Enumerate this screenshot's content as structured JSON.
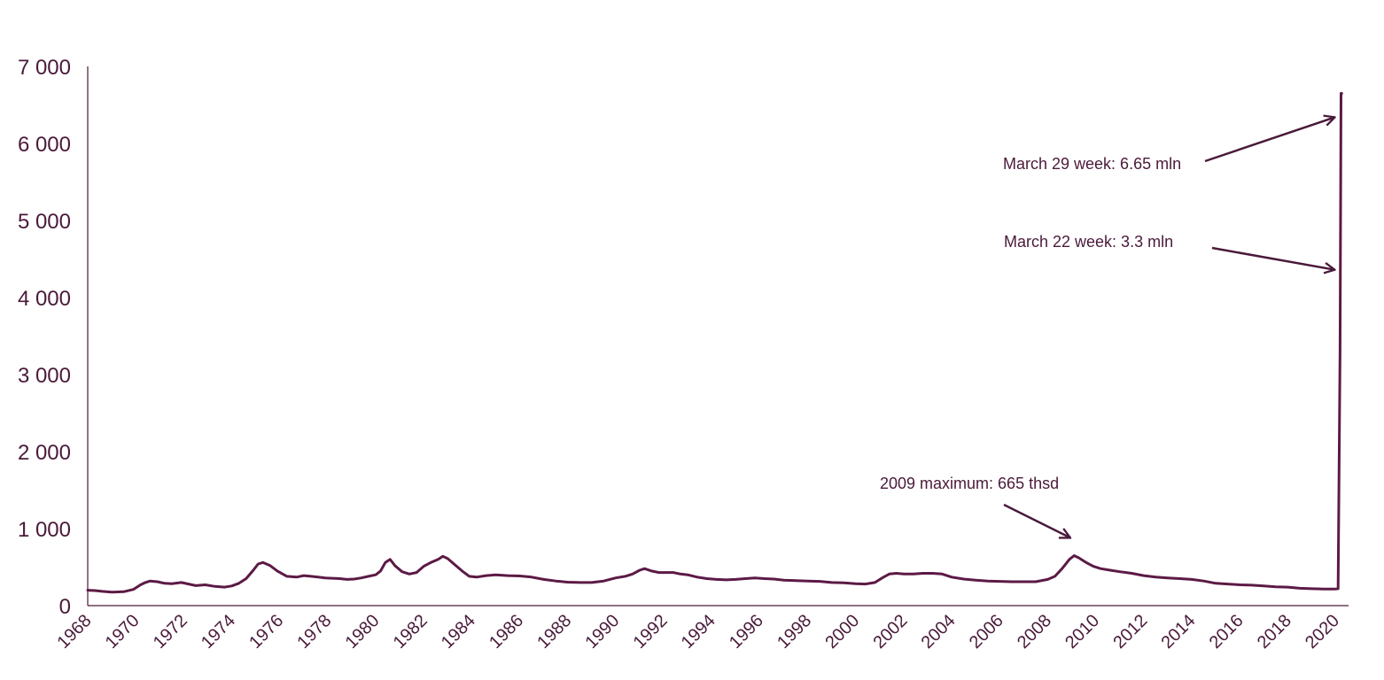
{
  "chart_data": {
    "type": "line",
    "title": "",
    "xlabel": "",
    "ylabel": "",
    "xlim": [
      1968,
      2020.35
    ],
    "ylim": [
      0,
      7000
    ],
    "grid": false,
    "legend": "none",
    "y_ticks": [
      0,
      1000,
      2000,
      3000,
      4000,
      5000,
      6000,
      7000
    ],
    "y_tick_labels": [
      "0",
      "1 000",
      "2 000",
      "3 000",
      "4 000",
      "5 000",
      "6 000",
      "7 000"
    ],
    "x_ticks": [
      1968,
      1970,
      1972,
      1974,
      1976,
      1978,
      1980,
      1982,
      1984,
      1986,
      1988,
      1990,
      1992,
      1994,
      1996,
      1998,
      2000,
      2002,
      2004,
      2006,
      2008,
      2010,
      2012,
      2014,
      2016,
      2018,
      2020
    ],
    "x_tick_labels": [
      "1968",
      "1970",
      "1972",
      "1974",
      "1976",
      "1978",
      "1980",
      "1982",
      "1984",
      "1986",
      "1988",
      "1990",
      "1992",
      "1994",
      "1996",
      "1998",
      "2000",
      "2002",
      "2004",
      "2006",
      "2008",
      "2010",
      "2012",
      "2014",
      "2016",
      "2018",
      "2020"
    ],
    "series": [
      {
        "color": "#5c1a45",
        "x": [
          1968.0,
          1968.3,
          1968.6,
          1969.0,
          1969.5,
          1969.9,
          1970.2,
          1970.4,
          1970.6,
          1970.9,
          1971.2,
          1971.5,
          1971.9,
          1972.2,
          1972.5,
          1972.9,
          1973.3,
          1973.7,
          1974.0,
          1974.3,
          1974.6,
          1974.9,
          1975.1,
          1975.3,
          1975.6,
          1975.9,
          1976.3,
          1976.7,
          1977.0,
          1977.3,
          1977.6,
          1977.9,
          1978.2,
          1978.5,
          1978.8,
          1979.1,
          1979.4,
          1979.7,
          1980.0,
          1980.2,
          1980.4,
          1980.6,
          1980.8,
          1981.1,
          1981.4,
          1981.7,
          1982.0,
          1982.3,
          1982.6,
          1982.8,
          1983.0,
          1983.3,
          1983.6,
          1983.9,
          1984.2,
          1984.6,
          1985.0,
          1985.5,
          1986.0,
          1986.5,
          1987.0,
          1987.5,
          1988.0,
          1988.5,
          1989.0,
          1989.5,
          1990.0,
          1990.4,
          1990.7,
          1991.0,
          1991.2,
          1991.5,
          1991.8,
          1992.1,
          1992.4,
          1992.7,
          1993.0,
          1993.4,
          1993.8,
          1994.2,
          1994.6,
          1995.0,
          1995.4,
          1995.8,
          1996.2,
          1996.6,
          1997.0,
          1997.5,
          1998.0,
          1998.5,
          1999.0,
          1999.5,
          2000.0,
          2000.4,
          2000.8,
          2001.1,
          2001.4,
          2001.7,
          2002.0,
          2002.4,
          2002.8,
          2003.2,
          2003.6,
          2004.0,
          2004.5,
          2005.0,
          2005.5,
          2006.0,
          2006.5,
          2007.0,
          2007.5,
          2008.0,
          2008.3,
          2008.6,
          2008.9,
          2009.1,
          2009.3,
          2009.6,
          2009.9,
          2010.2,
          2010.6,
          2011.0,
          2011.5,
          2012.0,
          2012.5,
          2013.0,
          2013.5,
          2014.0,
          2014.5,
          2015.0,
          2015.5,
          2016.0,
          2016.5,
          2017.0,
          2017.5,
          2018.0,
          2018.5,
          2019.0,
          2019.5,
          2019.95,
          2020.1,
          2020.18,
          2020.22,
          2020.25
        ],
        "values": [
          200,
          195,
          185,
          175,
          180,
          210,
          270,
          300,
          320,
          310,
          290,
          285,
          300,
          280,
          260,
          270,
          250,
          240,
          255,
          290,
          350,
          460,
          540,
          560,
          520,
          450,
          380,
          370,
          390,
          380,
          370,
          360,
          355,
          350,
          340,
          345,
          360,
          380,
          400,
          450,
          560,
          600,
          520,
          440,
          410,
          430,
          510,
          560,
          600,
          640,
          610,
          530,
          450,
          380,
          370,
          390,
          400,
          390,
          385,
          370,
          340,
          320,
          305,
          300,
          300,
          320,
          360,
          380,
          410,
          460,
          480,
          450,
          430,
          430,
          430,
          410,
          400,
          370,
          350,
          340,
          335,
          340,
          350,
          360,
          350,
          345,
          330,
          325,
          320,
          315,
          300,
          295,
          285,
          280,
          300,
          360,
          410,
          420,
          410,
          410,
          420,
          420,
          410,
          370,
          345,
          330,
          320,
          315,
          310,
          310,
          310,
          340,
          380,
          480,
          600,
          650,
          620,
          560,
          510,
          480,
          460,
          440,
          420,
          390,
          370,
          360,
          350,
          340,
          320,
          290,
          280,
          270,
          265,
          255,
          245,
          240,
          225,
          220,
          215,
          215,
          220,
          3300,
          6650,
          6650
        ]
      }
    ],
    "annotations": [
      {
        "text": "March 29 week: 6.65 mln",
        "target_x": 2020.22,
        "target_y": 6340
      },
      {
        "text": "March 22 week: 3.3 mln",
        "target_x": 2020.22,
        "target_y": 4360
      },
      {
        "text": "2009 maximum: 665 thsd",
        "target_x": 2009.2,
        "target_y": 880
      }
    ]
  }
}
